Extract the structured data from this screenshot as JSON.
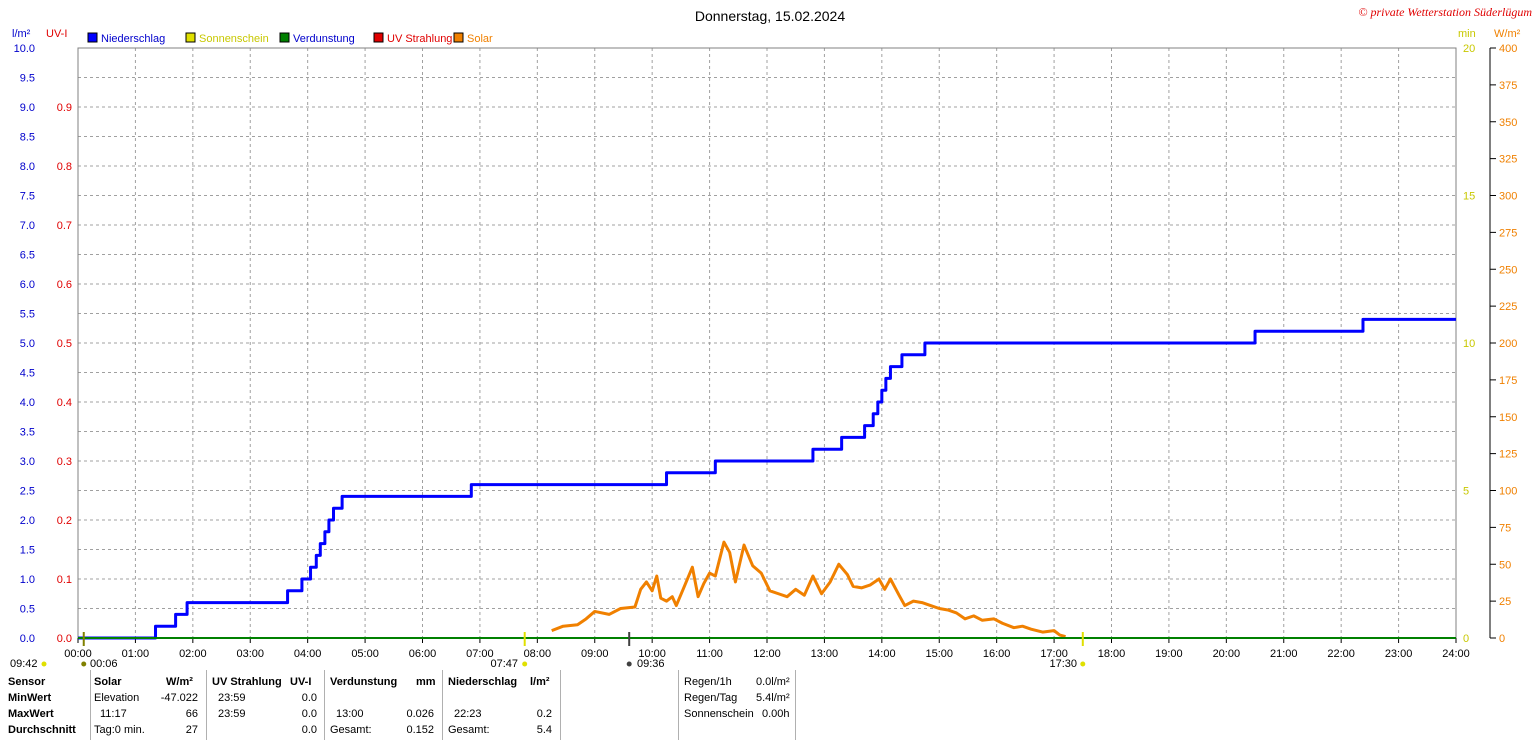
{
  "title": "Donnerstag, 15.02.2024",
  "copyright": "© private Wetterstation Süderlügum",
  "left_axis_units": {
    "precip": "l/m²",
    "uv": "UV-I"
  },
  "right_axis_units": {
    "min": "min",
    "solar": "W/m²"
  },
  "legend": [
    {
      "label": "Niederschlag",
      "color": "#0000ff",
      "text_color": "#0000cc"
    },
    {
      "label": "Sonnenschein",
      "color": "#e0e000",
      "text_color": "#c8c800"
    },
    {
      "label": "Verdunstung",
      "color": "#008000",
      "text_color": "#0000cc"
    },
    {
      "label": "UV Strahlung",
      "color": "#e00000",
      "text_color": "#e00000"
    },
    {
      "label": "Solar",
      "color": "#f08000",
      "text_color": "#f08000"
    }
  ],
  "markers": {
    "left": "09:42",
    "moon": "00:06",
    "sunrise": "07:47",
    "moon2": "09:36",
    "sunset": "17:30"
  },
  "chart_data": {
    "type": "line",
    "title": "Donnerstag, 15.02.2024",
    "x_unit": "hour",
    "x_ticks": [
      "00:00",
      "01:00",
      "02:00",
      "03:00",
      "04:00",
      "05:00",
      "06:00",
      "07:00",
      "08:00",
      "09:00",
      "10:00",
      "11:00",
      "12:00",
      "13:00",
      "14:00",
      "15:00",
      "16:00",
      "17:00",
      "18:00",
      "19:00",
      "20:00",
      "21:00",
      "22:00",
      "23:00",
      "24:00"
    ],
    "y_axes": {
      "precip": {
        "unit": "l/m²",
        "range": [
          0,
          10
        ],
        "ticks": [
          "0.0",
          "0.5",
          "1.0",
          "1.5",
          "2.0",
          "2.5",
          "3.0",
          "3.5",
          "4.0",
          "4.5",
          "5.0",
          "5.5",
          "6.0",
          "6.5",
          "7.0",
          "7.5",
          "8.0",
          "8.5",
          "9.0",
          "9.5",
          "10.0"
        ]
      },
      "uv": {
        "unit": "UV-I",
        "range": [
          0,
          1
        ],
        "ticks": [
          "0.0",
          "0.1",
          "0.2",
          "0.3",
          "0.4",
          "0.5",
          "0.6",
          "0.7",
          "0.8",
          "0.9"
        ]
      },
      "sunshine": {
        "unit": "min",
        "range": [
          0,
          20
        ],
        "ticks": [
          "0",
          "5",
          "10",
          "15",
          "20"
        ]
      },
      "solar": {
        "unit": "W/m²",
        "range": [
          0,
          400
        ],
        "ticks": [
          "0",
          "25",
          "50",
          "75",
          "100",
          "125",
          "150",
          "175",
          "200",
          "225",
          "250",
          "275",
          "300",
          "325",
          "350",
          "375",
          "400"
        ]
      }
    },
    "grid": true,
    "series": [
      {
        "name": "Niederschlag",
        "axis": "precip",
        "color": "#0000ff",
        "step": true,
        "points": [
          [
            0,
            0
          ],
          [
            1.35,
            0.2
          ],
          [
            1.7,
            0.4
          ],
          [
            1.9,
            0.6
          ],
          [
            3.65,
            0.8
          ],
          [
            3.9,
            1.0
          ],
          [
            4.05,
            1.2
          ],
          [
            4.15,
            1.4
          ],
          [
            4.22,
            1.6
          ],
          [
            4.3,
            1.8
          ],
          [
            4.37,
            2.0
          ],
          [
            4.45,
            2.2
          ],
          [
            4.6,
            2.4
          ],
          [
            6.85,
            2.6
          ],
          [
            10.25,
            2.8
          ],
          [
            11.1,
            3.0
          ],
          [
            12.8,
            3.2
          ],
          [
            13.3,
            3.4
          ],
          [
            13.7,
            3.6
          ],
          [
            13.85,
            3.8
          ],
          [
            13.93,
            4.0
          ],
          [
            14.0,
            4.2
          ],
          [
            14.07,
            4.4
          ],
          [
            14.15,
            4.6
          ],
          [
            14.35,
            4.8
          ],
          [
            14.75,
            5.0
          ],
          [
            20.5,
            5.2
          ],
          [
            22.38,
            5.4
          ],
          [
            24,
            5.4
          ]
        ]
      },
      {
        "name": "Solar",
        "axis": "solar",
        "color": "#f08000",
        "points": [
          [
            8.25,
            5
          ],
          [
            8.45,
            8
          ],
          [
            8.7,
            9
          ],
          [
            8.85,
            13
          ],
          [
            9.0,
            18
          ],
          [
            9.25,
            16
          ],
          [
            9.45,
            20
          ],
          [
            9.7,
            21
          ],
          [
            9.8,
            33
          ],
          [
            9.9,
            38
          ],
          [
            10.0,
            32
          ],
          [
            10.08,
            42
          ],
          [
            10.15,
            27
          ],
          [
            10.25,
            25
          ],
          [
            10.35,
            28
          ],
          [
            10.42,
            22
          ],
          [
            10.55,
            34
          ],
          [
            10.7,
            48
          ],
          [
            10.8,
            28
          ],
          [
            10.9,
            37
          ],
          [
            11.0,
            44
          ],
          [
            11.1,
            42
          ],
          [
            11.25,
            65
          ],
          [
            11.35,
            58
          ],
          [
            11.45,
            38
          ],
          [
            11.6,
            63
          ],
          [
            11.75,
            49
          ],
          [
            11.9,
            44
          ],
          [
            12.05,
            32
          ],
          [
            12.2,
            30
          ],
          [
            12.35,
            28
          ],
          [
            12.5,
            33
          ],
          [
            12.65,
            29
          ],
          [
            12.8,
            42
          ],
          [
            12.95,
            30
          ],
          [
            13.1,
            38
          ],
          [
            13.25,
            50
          ],
          [
            13.4,
            43
          ],
          [
            13.5,
            35
          ],
          [
            13.65,
            34
          ],
          [
            13.8,
            36
          ],
          [
            13.95,
            40
          ],
          [
            14.05,
            33
          ],
          [
            14.15,
            40
          ],
          [
            14.3,
            29
          ],
          [
            14.4,
            22
          ],
          [
            14.55,
            25
          ],
          [
            14.7,
            24
          ],
          [
            14.85,
            22
          ],
          [
            15.0,
            20
          ],
          [
            15.15,
            19
          ],
          [
            15.3,
            17
          ],
          [
            15.45,
            13
          ],
          [
            15.6,
            15
          ],
          [
            15.75,
            12
          ],
          [
            15.95,
            13
          ],
          [
            16.1,
            10
          ],
          [
            16.3,
            7
          ],
          [
            16.45,
            8
          ],
          [
            16.6,
            6
          ],
          [
            16.8,
            4
          ],
          [
            17.0,
            5
          ],
          [
            17.1,
            2
          ],
          [
            17.2,
            1
          ]
        ]
      },
      {
        "name": "Verdunstung",
        "axis": "precip",
        "color": "#008000",
        "points": [
          [
            0,
            0
          ],
          [
            24,
            0
          ]
        ]
      }
    ]
  },
  "stats": {
    "header": {
      "sensor": "Sensor",
      "solar": "Solar",
      "solar_unit": "W/m²",
      "uv": "UV Strahlung",
      "uv_unit": "UV-I",
      "verd": "Verdunstung",
      "verd_unit": "mm",
      "nied": "Niederschlag",
      "nied_unit": "l/m²"
    },
    "rows": [
      {
        "label": "MinWert",
        "solar_time": "Elevation",
        "solar_val": "-47.022",
        "uv_time": "23:59",
        "uv_val": "0.0",
        "verd_time": "",
        "verd_val": "",
        "nied_time": "",
        "nied_val": ""
      },
      {
        "label": "MaxWert",
        "solar_time": "11:17",
        "solar_val": "66",
        "uv_time": "23:59",
        "uv_val": "0.0",
        "verd_time": "13:00",
        "verd_val": "0.026",
        "nied_time": "22:23",
        "nied_val": "0.2"
      },
      {
        "label": "Durchschnitt",
        "solar_time": "Tag:0 min.",
        "solar_val": "27",
        "uv_time": "",
        "uv_val": "0.0",
        "verd_time": "Gesamt:",
        "verd_val": "0.152",
        "nied_time": "Gesamt:",
        "nied_val": "5.4"
      }
    ],
    "summary": [
      {
        "label": "Regen/1h",
        "value": "0.0l/m²"
      },
      {
        "label": "Regen/Tag",
        "value": "5.4l/m²"
      },
      {
        "label": "Sonnenschein",
        "value": "0.00h"
      }
    ]
  }
}
